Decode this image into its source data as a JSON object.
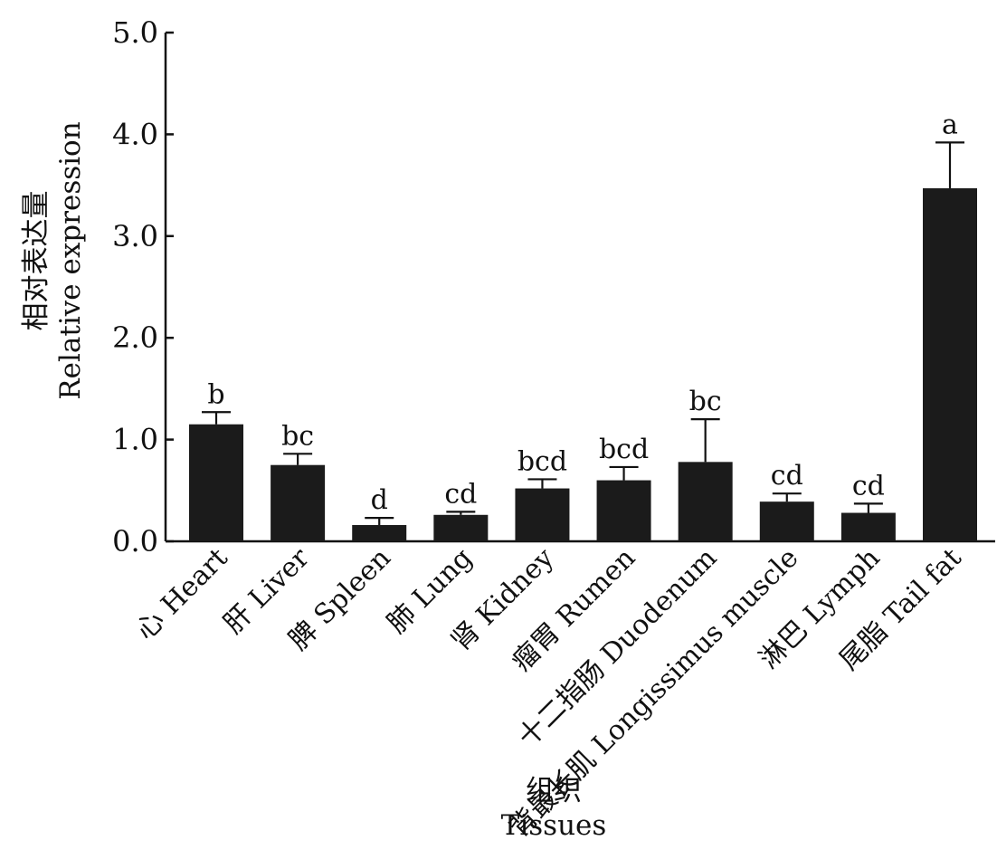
{
  "chart_data": {
    "type": "bar",
    "title": "",
    "ylabel": [
      "相对表达量",
      "Relative expression"
    ],
    "xlabel": [
      "组织",
      "Tissues"
    ],
    "ylim": [
      0,
      5
    ],
    "yticks": [
      "0.0",
      "1.0",
      "2.0",
      "3.0",
      "4.0",
      "5.0"
    ],
    "grid": false,
    "legend": "none",
    "bar_color": "#1b1b1b",
    "categories": [
      "心 Heart",
      "肝 Liver",
      "脾 Spleen",
      "肺 Lung",
      "肾 Kidney",
      "瘤胃 Rumen",
      "十二指肠 Duodenum",
      "背最长肌 Longissimus muscle",
      "淋巴 Lymph",
      "尾脂 Tail fat"
    ],
    "values": [
      1.15,
      0.75,
      0.16,
      0.26,
      0.52,
      0.6,
      0.78,
      0.39,
      0.28,
      3.47
    ],
    "errors": [
      0.12,
      0.11,
      0.07,
      0.03,
      0.09,
      0.13,
      0.42,
      0.08,
      0.09,
      0.45
    ],
    "significance": [
      "b",
      "bc",
      "d",
      "cd",
      "bcd",
      "bcd",
      "bc",
      "cd",
      "cd",
      "a"
    ]
  }
}
